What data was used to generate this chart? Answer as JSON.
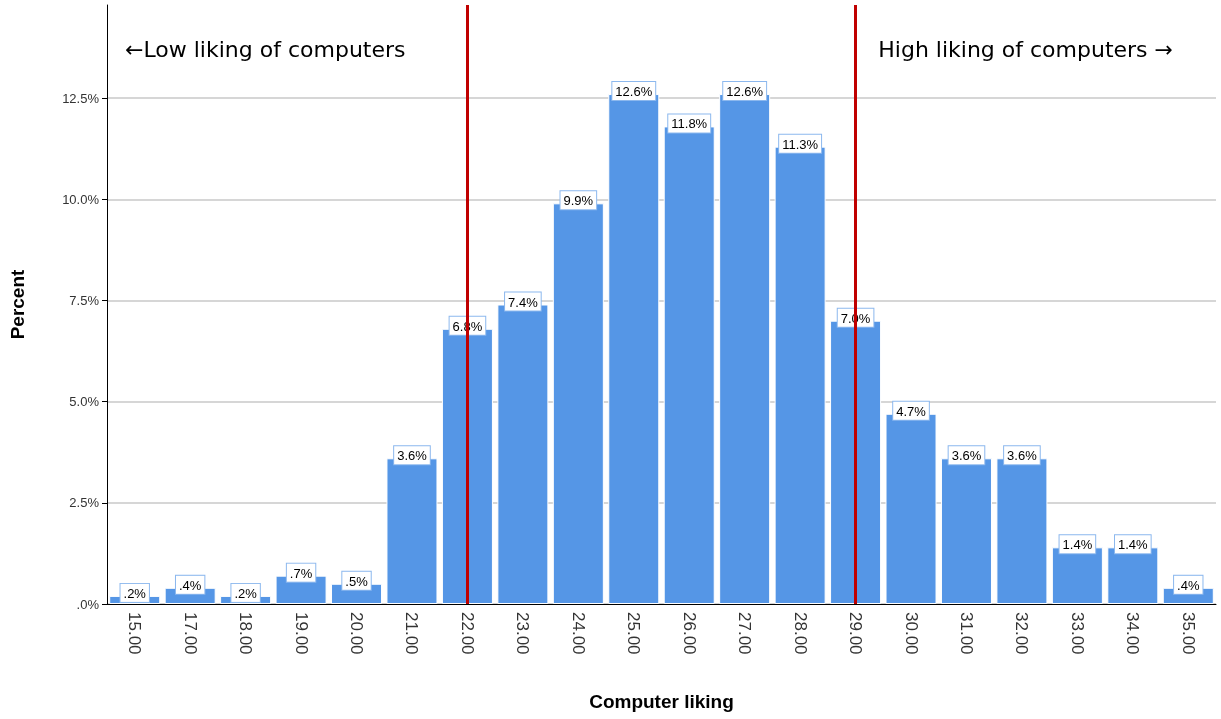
{
  "chart_data": {
    "type": "bar",
    "xlabel": "Computer liking",
    "ylabel": "Percent",
    "categories": [
      "15.00",
      "17.00",
      "18.00",
      "19.00",
      "20.00",
      "21.00",
      "22.00",
      "23.00",
      "24.00",
      "25.00",
      "26.00",
      "27.00",
      "28.00",
      "29.00",
      "30.00",
      "31.00",
      "32.00",
      "33.00",
      "34.00",
      "35.00"
    ],
    "values": [
      0.2,
      0.4,
      0.2,
      0.7,
      0.5,
      3.6,
      6.8,
      7.4,
      9.9,
      12.6,
      11.8,
      12.6,
      11.3,
      7.0,
      4.7,
      3.6,
      3.6,
      1.4,
      1.4,
      0.4
    ],
    "value_labels": [
      ".2%",
      ".4%",
      ".2%",
      ".7%",
      ".5%",
      "3.6%",
      "6.8%",
      "7.4%",
      "9.9%",
      "12.6%",
      "11.8%",
      "12.6%",
      "11.3%",
      "7.0%",
      "4.7%",
      "3.6%",
      "3.6%",
      "1.4%",
      "1.4%",
      ".4%"
    ],
    "color": "#5596e6",
    "ylim": [
      0,
      14.8
    ],
    "yticks": [
      {
        "value": 0,
        "label": ".0%"
      },
      {
        "value": 2.5,
        "label": "2.5%"
      },
      {
        "value": 5,
        "label": "5.0%"
      },
      {
        "value": 7.5,
        "label": "7.5%"
      },
      {
        "value": 10,
        "label": "10.0%"
      },
      {
        "value": 12.5,
        "label": "12.5%"
      }
    ],
    "grid": "y",
    "ref_lines": [
      {
        "axis": "x",
        "value": "22.00",
        "color": "#c00000"
      },
      {
        "axis": "x",
        "value": "29.00",
        "color": "#c00000"
      }
    ],
    "annotations": [
      "←Low liking of computers",
      "High liking of computers →"
    ]
  }
}
